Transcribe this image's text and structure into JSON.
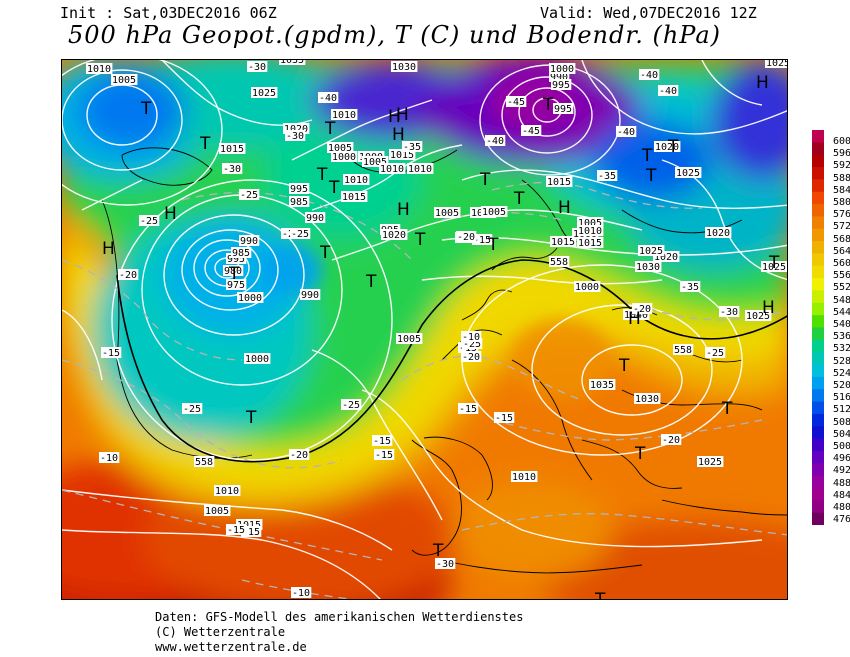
{
  "header": {
    "init": "Init : Sat,03DEC2016 06Z",
    "valid": "Valid: Wed,07DEC2016 12Z",
    "title": "500 hPa Geopot.(gpdm), T (C) und Bodendr. (hPa)"
  },
  "colorbar": {
    "labels": [
      "600",
      "596",
      "592",
      "588",
      "584",
      "580",
      "576",
      "572",
      "568",
      "564",
      "560",
      "556",
      "552",
      "548",
      "544",
      "540",
      "536",
      "532",
      "528",
      "524",
      "520",
      "516",
      "512",
      "508",
      "504",
      "500",
      "496",
      "492",
      "488",
      "484",
      "480",
      "476"
    ],
    "colors": [
      "#c00050",
      "#a0001e",
      "#b40000",
      "#cc1000",
      "#e02800",
      "#f04800",
      "#f06400",
      "#f08000",
      "#f09800",
      "#f0b000",
      "#f0c800",
      "#f0dc00",
      "#f0f000",
      "#c8f000",
      "#96f000",
      "#50e000",
      "#20d040",
      "#00d08c",
      "#00c8b4",
      "#00c0dc",
      "#00a0f0",
      "#0078f0",
      "#0050e8",
      "#0028e0",
      "#1010d0",
      "#4000c8",
      "#6400c0",
      "#8000b0",
      "#9800a0",
      "#a00090",
      "#900080",
      "#700060"
    ]
  },
  "map": {
    "pressure_labels": [
      {
        "text": "1010"
      },
      {
        "text": "1005"
      },
      {
        "text": "1035"
      },
      {
        "text": "1030"
      },
      {
        "text": "1025"
      },
      {
        "text": "1025"
      },
      {
        "text": "1020"
      },
      {
        "text": "1015"
      },
      {
        "text": "1010"
      },
      {
        "text": "1005"
      },
      {
        "text": "1000"
      },
      {
        "text": "995"
      },
      {
        "text": "990"
      },
      {
        "text": "1010"
      },
      {
        "text": "1015"
      },
      {
        "text": "1010"
      },
      {
        "text": "1000"
      },
      {
        "text": "1005"
      },
      {
        "text": "1010"
      },
      {
        "text": "1015"
      },
      {
        "text": "1000"
      },
      {
        "text": "995"
      },
      {
        "text": "990"
      },
      {
        "text": "985"
      },
      {
        "text": "980"
      },
      {
        "text": "975"
      },
      {
        "text": "990"
      },
      {
        "text": "995"
      },
      {
        "text": "1000"
      },
      {
        "text": "995"
      },
      {
        "text": "1005"
      },
      {
        "text": "1005"
      },
      {
        "text": "1010"
      },
      {
        "text": "1015"
      },
      {
        "text": "1000"
      },
      {
        "text": "1005"
      },
      {
        "text": "1010"
      },
      {
        "text": "1015"
      },
      {
        "text": "1020"
      },
      {
        "text": "1025"
      },
      {
        "text": "1030"
      },
      {
        "text": "1040"
      },
      {
        "text": "1035"
      },
      {
        "text": "1030"
      },
      {
        "text": "1025"
      },
      {
        "text": "1020"
      },
      {
        "text": "1025"
      },
      {
        "text": "1000"
      },
      {
        "text": "1005"
      },
      {
        "text": "1010"
      },
      {
        "text": "1015"
      },
      {
        "text": "1020"
      },
      {
        "text": "1025"
      },
      {
        "text": "1000"
      },
      {
        "text": "995"
      },
      {
        "text": "990"
      },
      {
        "text": "985"
      },
      {
        "text": "1005"
      },
      {
        "text": "1010"
      },
      {
        "text": "1025"
      },
      {
        "text": "1015"
      },
      {
        "text": "1020"
      }
    ],
    "temp_labels": [
      {
        "text": "-30"
      },
      {
        "text": "-40"
      },
      {
        "text": "-35"
      },
      {
        "text": "-30"
      },
      {
        "text": "-25"
      },
      {
        "text": "-30"
      },
      {
        "text": "-25"
      },
      {
        "text": "-25"
      },
      {
        "text": "-20"
      },
      {
        "text": "-15"
      },
      {
        "text": "-20"
      },
      {
        "text": "-25"
      },
      {
        "text": "-20"
      },
      {
        "text": "-25"
      },
      {
        "text": "-25"
      },
      {
        "text": "-20"
      },
      {
        "text": "-15"
      },
      {
        "text": "-15"
      },
      {
        "text": "-10"
      },
      {
        "text": "-15"
      },
      {
        "text": "-15"
      },
      {
        "text": "-15"
      },
      {
        "text": "-15"
      },
      {
        "text": "-10"
      },
      {
        "text": "-40"
      },
      {
        "text": "-45"
      },
      {
        "text": "-45"
      },
      {
        "text": "-40"
      },
      {
        "text": "-40"
      },
      {
        "text": "-35"
      },
      {
        "text": "-40"
      },
      {
        "text": "-30"
      },
      {
        "text": "-35"
      },
      {
        "text": "-20"
      },
      {
        "text": "-25"
      },
      {
        "text": "-20"
      },
      {
        "text": "-30"
      },
      {
        "text": "-25"
      },
      {
        "text": "-10"
      },
      {
        "text": "-15"
      },
      {
        "text": "-20"
      },
      {
        "text": "-15"
      }
    ],
    "centers": [
      {
        "text": "T"
      },
      {
        "text": "H"
      },
      {
        "text": "H"
      },
      {
        "text": "H"
      },
      {
        "text": "T"
      },
      {
        "text": "T"
      },
      {
        "text": "H"
      },
      {
        "text": "T"
      },
      {
        "text": "H"
      },
      {
        "text": "T"
      },
      {
        "text": "T"
      },
      {
        "text": "T"
      },
      {
        "text": "T"
      },
      {
        "text": "T"
      },
      {
        "text": "T"
      },
      {
        "text": "T"
      },
      {
        "text": "H"
      },
      {
        "text": "T"
      },
      {
        "text": "T"
      },
      {
        "text": "T"
      },
      {
        "text": "T"
      },
      {
        "text": "H"
      },
      {
        "text": "H"
      },
      {
        "text": "T"
      },
      {
        "text": "T"
      },
      {
        "text": "T"
      },
      {
        "text": "T"
      },
      {
        "text": "T"
      },
      {
        "text": "T"
      },
      {
        "text": "T"
      },
      {
        "text": "T"
      },
      {
        "text": "H"
      },
      {
        "text": "H"
      }
    ],
    "contour_labels": [
      {
        "text": "558"
      },
      {
        "text": "558"
      },
      {
        "text": "558"
      }
    ]
  },
  "credits": {
    "line1": "Daten: GFS-Modell des amerikanischen Wetterdienstes",
    "line2": "(C) Wetterzentrale",
    "line3": "www.wetterzentrale.de"
  }
}
